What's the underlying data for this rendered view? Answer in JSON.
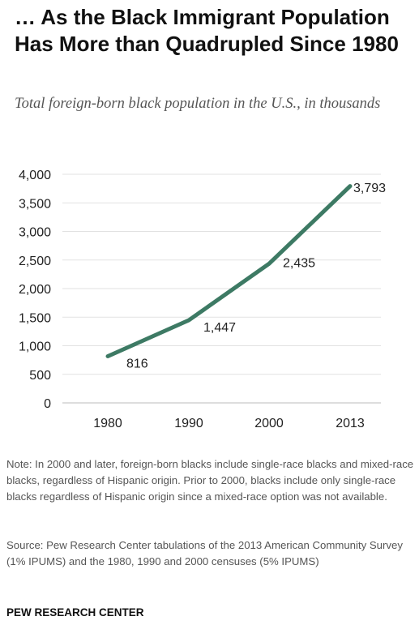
{
  "chart_data": {
    "type": "line",
    "title": "… As the Black Immigrant Population Has More than Quadrupled Since 1980",
    "subtitle": "Total foreign-born black population in the U.S., in thousands",
    "categories": [
      "1980",
      "1990",
      "2000",
      "2013"
    ],
    "series": [
      {
        "values": [
          816,
          1447,
          2435,
          3793
        ],
        "color": "#3d7a64"
      }
    ],
    "data_labels": [
      "816",
      "1,447",
      "2,435",
      "3,793"
    ],
    "ylim": [
      0,
      4000
    ],
    "yticks": [
      0,
      500,
      1000,
      1500,
      2000,
      2500,
      3000,
      3500,
      4000
    ],
    "ytick_labels": [
      "0",
      "500",
      "1,000",
      "1,500",
      "2,000",
      "2,500",
      "3,000",
      "3,500",
      "4,000"
    ],
    "grid": "horizontal",
    "xlabel": "",
    "ylabel": ""
  },
  "note": "Note: In 2000 and later, foreign-born blacks include single-race blacks and mixed-race blacks, regardless of Hispanic origin. Prior to 2000, blacks include only single-race blacks regardless of Hispanic origin since a mixed-race option was not available.",
  "source": "Source: Pew Research Center tabulations of the 2013 American Community Survey (1% IPUMS) and the 1980, 1990 and 2000 censuses (5% IPUMS)",
  "footer": "PEW RESEARCH CENTER"
}
